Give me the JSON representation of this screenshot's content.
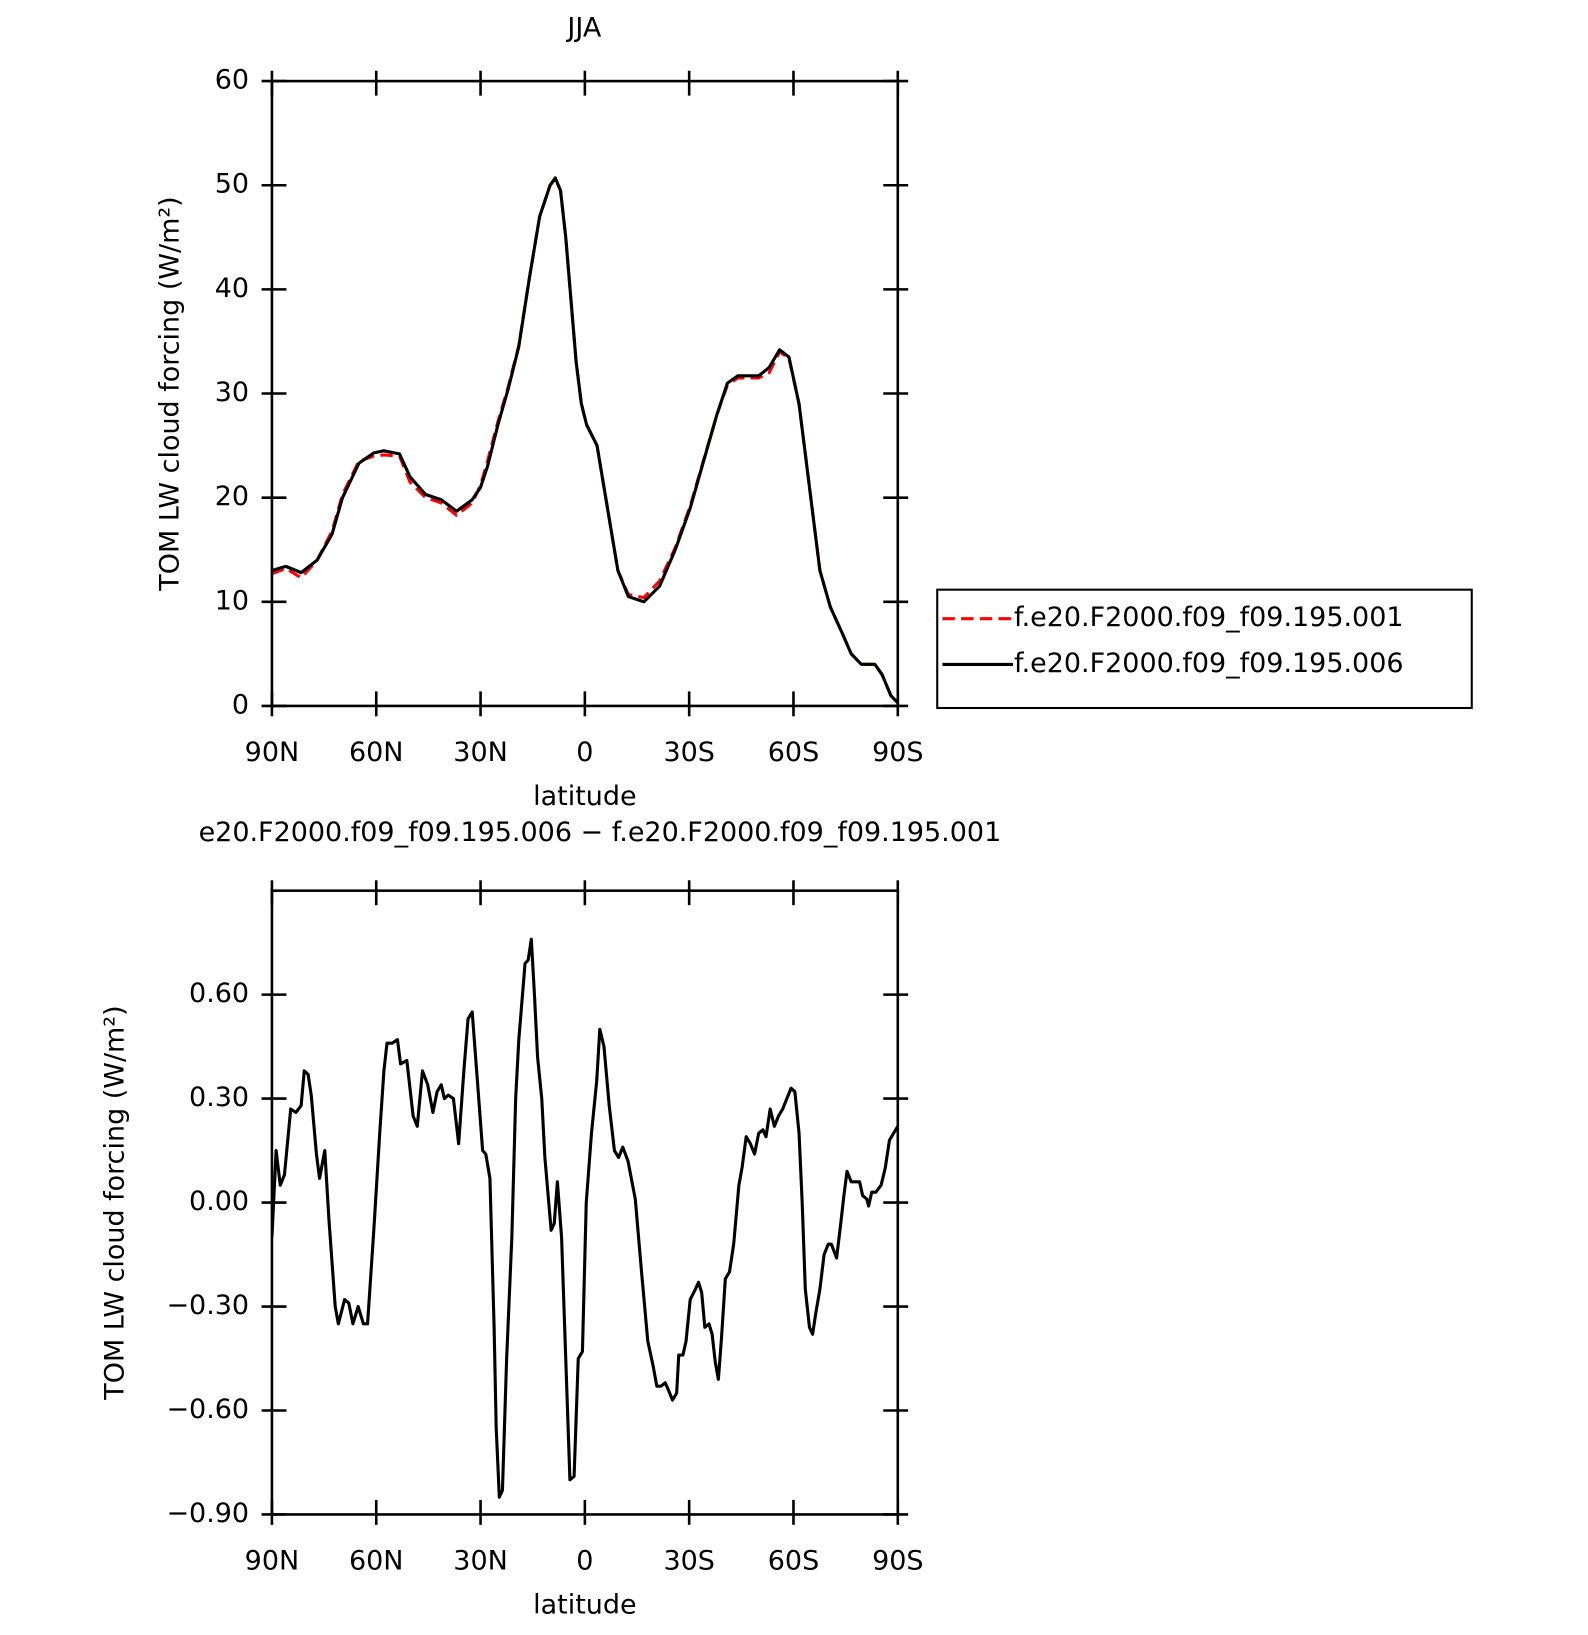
{
  "chart_data": [
    {
      "type": "line",
      "title": "JJA",
      "x_label": "latitude",
      "y_label": "TOM LW cloud forcing (W/m²)",
      "xlim": [
        90,
        -90
      ],
      "xticks": [
        {
          "value": 90,
          "label": "90N"
        },
        {
          "value": 60,
          "label": "60N"
        },
        {
          "value": 30,
          "label": "30N"
        },
        0,
        {
          "value": -30,
          "label": "30S"
        },
        {
          "value": -60,
          "label": "60S"
        },
        {
          "value": -90,
          "label": "90S"
        }
      ],
      "ylim": [
        0,
        60
      ],
      "yticks": [
        0,
        10,
        20,
        30,
        40,
        50,
        60
      ],
      "legend": "outside-right",
      "x": [
        90,
        86,
        81.6,
        77,
        72.7,
        69.7,
        65,
        60.7,
        57.8,
        53.3,
        50.3,
        45.8,
        41.3,
        36.9,
        32.4,
        30,
        28,
        25,
        22,
        19,
        16,
        13,
        10,
        8.5,
        7,
        5.5,
        4,
        2.5,
        1,
        -0.5,
        -3.5,
        -6.5,
        -9.5,
        -12.5,
        -17,
        -21.5,
        -26,
        -30.3,
        -35,
        -38,
        -41,
        -44,
        -50,
        -53,
        -56,
        -58.7,
        -61.6,
        -64.6,
        -67.6,
        -70.6,
        -74,
        -76.6,
        -79.5,
        -83.4,
        -85.5,
        -88,
        -90
      ],
      "series": [
        {
          "name": "f.e20.F2000.f09_f09.195.001",
          "color": "#ff0000",
          "line_style": "dashed",
          "values": [
            12.7,
            13.2,
            12.3,
            14,
            16.8,
            20.3,
            23.5,
            24,
            24.1,
            24,
            21.5,
            20,
            19.5,
            18.3,
            19.5,
            21.2,
            23.5,
            27.3,
            30.7,
            34.6,
            41,
            47,
            50,
            50.6,
            49.5,
            45,
            39,
            33,
            29,
            27,
            25,
            19,
            13,
            10.7,
            10.4,
            12,
            15.2,
            19.2,
            24.6,
            28,
            30.8,
            31.5,
            31.5,
            32,
            34,
            33.4,
            29,
            21,
            13,
            9.5,
            7,
            5,
            4,
            4,
            3,
            1,
            0.3
          ]
        },
        {
          "name": "f.e20.F2000.f09_f09.195.006",
          "color": "#000000",
          "line_style": "solid",
          "values": [
            13,
            13.4,
            12.8,
            14,
            16.5,
            20,
            23.3,
            24.3,
            24.5,
            24.2,
            22,
            20.3,
            19.8,
            18.7,
            19.8,
            21,
            23,
            27,
            30.5,
            34.5,
            41,
            47,
            50,
            50.7,
            49.5,
            45,
            39,
            33,
            29,
            27,
            25,
            19,
            13,
            10.5,
            10,
            11.5,
            15,
            19,
            24.5,
            28,
            31,
            31.7,
            31.7,
            32.5,
            34.2,
            33.5,
            29,
            21,
            13,
            9.5,
            7,
            5,
            4,
            4,
            3,
            1,
            0.3
          ]
        }
      ]
    },
    {
      "type": "line",
      "title": "e20.F2000.f09_f09.195.006 − f.e20.F2000.f09_f09.195.001",
      "x_label": "latitude",
      "y_label": "TOM LW cloud forcing (W/m²)",
      "xlim": [
        90,
        -90
      ],
      "xticks": [
        {
          "value": 90,
          "label": "90N"
        },
        {
          "value": 60,
          "label": "60N"
        },
        {
          "value": 30,
          "label": "30N"
        },
        0,
        {
          "value": -30,
          "label": "30S"
        },
        {
          "value": -60,
          "label": "60S"
        },
        {
          "value": -90,
          "label": "90S"
        }
      ],
      "ylim": [
        -0.9,
        0.9
      ],
      "yticks": [
        {
          "value": -0.9,
          "label": "−0.90"
        },
        {
          "value": -0.6,
          "label": "−0.60"
        },
        {
          "value": -0.3,
          "label": "−0.30"
        },
        {
          "value": 0,
          "label": "0.00"
        },
        {
          "value": 0.3,
          "label": "0.30"
        },
        {
          "value": 0.6,
          "label": "0.60"
        }
      ],
      "x": [
        90,
        88.8,
        87.6,
        86.4,
        84.6,
        83.1,
        81.6,
        80.7,
        79.6,
        78.7,
        77.2,
        76.3,
        74.8,
        73.6,
        71.8,
        70.9,
        69.1,
        67.9,
        66.7,
        65.2,
        63.7,
        62.5,
        60.7,
        59.0,
        57.8,
        56.9,
        55.4,
        53.9,
        53.0,
        51.2,
        49.4,
        48.2,
        46.7,
        45.2,
        43.7,
        42.5,
        41.3,
        40.4,
        39.3,
        37.8,
        36.3,
        34.8,
        33.6,
        32.4,
        30.9,
        29.4,
        28.5,
        27.3,
        26.1,
        25.5,
        24.6,
        23.7,
        22.5,
        21.0,
        19.9,
        19.0,
        17.2,
        16.3,
        15.4,
        14.5,
        13.6,
        12.4,
        11.5,
        9.7,
        8.8,
        7.9,
        6.7,
        5.5,
        4.3,
        3.1,
        1.9,
        0.7,
        -0.4,
        -1.9,
        -3.4,
        -4.3,
        -5.5,
        -7.0,
        -8.5,
        -9.7,
        -10.9,
        -12.4,
        -14.5,
        -16.3,
        -18.1,
        -19.6,
        -20.7,
        -21.9,
        -23.1,
        -24.0,
        -25.2,
        -26.4,
        -27.0,
        -28.2,
        -29.1,
        -30.3,
        -31.8,
        -32.7,
        -33.6,
        -34.5,
        -35.7,
        -36.6,
        -37.5,
        -38.4,
        -39.3,
        -40.4,
        -41.6,
        -42.8,
        -44.3,
        -45.2,
        -46.4,
        -47.6,
        -48.8,
        -50.0,
        -51.2,
        -52.1,
        -53.3,
        -54.5,
        -55.7,
        -56.9,
        -58.1,
        -59.3,
        -60.4,
        -61.6,
        -62.5,
        -63.4,
        -64.6,
        -65.5,
        -66.4,
        -67.6,
        -68.8,
        -70.0,
        -70.9,
        -72.4,
        -73.6,
        -74.5,
        -75.4,
        -76.6,
        -77.8,
        -79.0,
        -79.9,
        -81.1,
        -81.6,
        -82.5,
        -83.7,
        -85.2,
        -86.4,
        -87.6,
        -88.8,
        -90
      ],
      "series": [
        {
          "color": "#000000",
          "values": [
            -0.1,
            0.15,
            0.05,
            0.08,
            0.27,
            0.26,
            0.28,
            0.38,
            0.37,
            0.31,
            0.14,
            0.07,
            0.15,
            -0.05,
            -0.3,
            -0.35,
            -0.28,
            -0.29,
            -0.35,
            -0.3,
            -0.35,
            -0.35,
            -0.08,
            0.2,
            0.38,
            0.46,
            0.46,
            0.47,
            0.4,
            0.41,
            0.25,
            0.22,
            0.38,
            0.34,
            0.26,
            0.32,
            0.34,
            0.3,
            0.31,
            0.3,
            0.17,
            0.38,
            0.53,
            0.55,
            0.35,
            0.15,
            0.14,
            0.07,
            -0.36,
            -0.65,
            -0.85,
            -0.83,
            -0.45,
            -0.1,
            0.3,
            0.47,
            0.69,
            0.7,
            0.76,
            0.6,
            0.42,
            0.3,
            0.13,
            -0.08,
            -0.06,
            0.06,
            -0.1,
            -0.45,
            -0.8,
            -0.79,
            -0.45,
            -0.43,
            0.0,
            0.2,
            0.35,
            0.5,
            0.45,
            0.28,
            0.15,
            0.13,
            0.16,
            0.12,
            0.01,
            -0.2,
            -0.4,
            -0.47,
            -0.53,
            -0.53,
            -0.52,
            -0.54,
            -0.57,
            -0.55,
            -0.44,
            -0.44,
            -0.4,
            -0.28,
            -0.25,
            -0.23,
            -0.26,
            -0.36,
            -0.35,
            -0.38,
            -0.46,
            -0.51,
            -0.39,
            -0.22,
            -0.2,
            -0.12,
            0.05,
            0.1,
            0.19,
            0.17,
            0.14,
            0.2,
            0.21,
            0.19,
            0.27,
            0.22,
            0.25,
            0.27,
            0.3,
            0.33,
            0.32,
            0.2,
            0.0,
            -0.25,
            -0.36,
            -0.38,
            -0.32,
            -0.25,
            -0.15,
            -0.12,
            -0.12,
            -0.16,
            -0.06,
            0.02,
            0.09,
            0.06,
            0.06,
            0.06,
            0.02,
            0.01,
            -0.01,
            0.03,
            0.03,
            0.05,
            0.1,
            0.18,
            0.2,
            0.22
          ]
        }
      ]
    }
  ]
}
